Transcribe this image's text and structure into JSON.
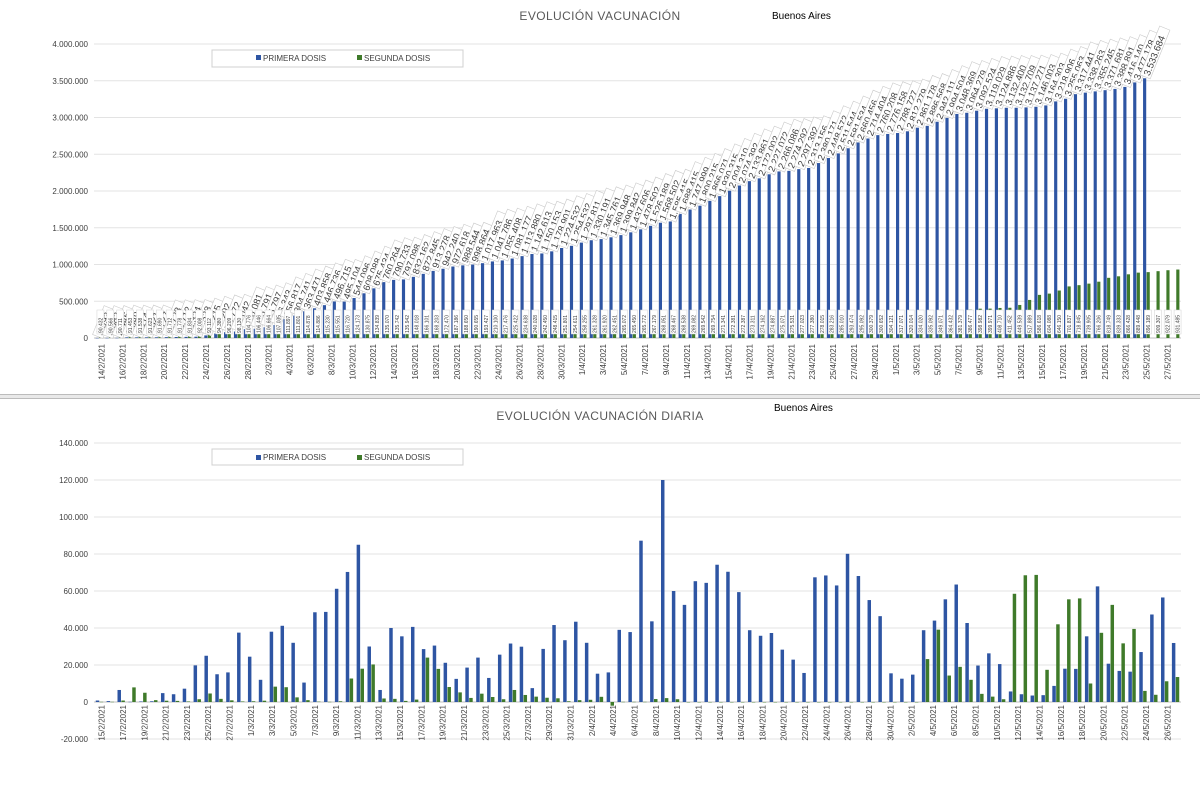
{
  "chart_data": [
    {
      "type": "bar",
      "title": "EVOLUCIÓN VACUNACIÓN",
      "subtitle": "Buenos Aires",
      "ylim": [
        0,
        4000000
      ],
      "y_ticks": [
        "0",
        "500.000",
        "1.000.000",
        "1.500.000",
        "2.000.000",
        "2.500.000",
        "3.000.000",
        "3.500.000",
        "4.000.000"
      ],
      "x_tick_labels": [
        "14/2/2021",
        "16/2/2021",
        "18/2/2021",
        "20/2/2021",
        "22/2/2021",
        "24/2/2021",
        "26/2/2021",
        "28/2/2021",
        "2/3/2021",
        "4/3/2021",
        "6/3/2021",
        "8/3/2021",
        "10/3/2021",
        "12/3/2021",
        "14/3/2021",
        "16/3/2021",
        "18/3/2021",
        "20/3/2021",
        "22/3/2021",
        "24/3/2021",
        "26/3/2021",
        "28/3/2021",
        "30/3/2021",
        "1/4/2021",
        "3/4/2021",
        "5/4/2021",
        "7/4/2021",
        "9/4/2021",
        "11/4/2021",
        "13/4/2021",
        "15/4/2021",
        "17/4/2021",
        "19/4/2021",
        "21/4/2021",
        "23/4/2021",
        "25/4/2021",
        "27/4/2021",
        "29/4/2021",
        "1/5/2021",
        "3/5/2021",
        "5/5/2021",
        "7/5/2021",
        "9/5/2021",
        "11/5/2021",
        "13/5/2021",
        "15/5/2021",
        "17/5/2021",
        "19/5/2021",
        "21/5/2021",
        "23/5/2021",
        "25/5/2021",
        "27/5/2021"
      ],
      "legend": {
        "position": "top-left",
        "entries": [
          "PRIMERA DOSIS",
          "SEGUNDA DOSIS"
        ]
      },
      "gridlines": true,
      "series": [
        {
          "name": "PRIMERA DOSIS",
          "color": "#2e55a3",
          "values": [
            1093,
            1882,
            2445,
            9049,
            9114,
            9321,
            9727,
            11728,
            13712,
            15324,
            17528,
            35215,
            61292,
            78772,
            88042,
            120081,
            125791,
            145797,
            176343,
            256817,
            304741,
            363471,
            403858,
            446736,
            496715,
            495104,
            544096,
            608088,
            675434,
            760264,
            790733,
            797098,
            832162,
            872845,
            913278,
            942240,
            972618,
            988544,
            998864,
            1017963,
            1041786,
            1055408,
            1081177,
            1113880,
            1142613,
            1150153,
            1178901,
            1224532,
            1254532,
            1297811,
            1330191,
            1345761,
            1369948,
            1399842,
            1437606,
            1478502,
            1526189,
            1568502,
            1585415,
            1688415,
            1747999,
            1800215,
            1866071,
            1930315,
            2004310,
            2074392,
            2133861,
            2172002,
            2227072,
            2266086,
            2274292,
            2297392,
            2313156,
            2380171,
            2448572,
            2511544,
            2581534,
            2660456,
            2714404,
            2760208,
            2776158,
            2788727,
            2812279,
            2861178,
            2886568,
            2942111,
            2994504,
            3048369,
            3064279,
            3092524,
            3119029,
            3124886,
            3132400,
            3132709,
            3137271,
            3146003,
            3164303,
            3218906,
            3255063,
            3317441,
            3338263,
            3355245,
            3371681,
            3388891,
            3416140,
            3477178,
            3533684
          ]
        },
        {
          "name": "SEGUNDA DOSIS",
          "color": "#3f7a2a",
          "values": [
            90432,
            90566,
            90711,
            91453,
            91538,
            91623,
            91690,
            91712,
            91778,
            91834,
            92008,
            93112,
            94380,
            96209,
            98130,
            104776,
            106446,
            106664,
            107035,
            111897,
            111801,
            114878,
            114886,
            115230,
            115551,
            116720,
            124173,
            130875,
            134839,
            135070,
            135742,
            135942,
            148018,
            166101,
            168203,
            172470,
            187186,
            188650,
            190655,
            193427,
            210100,
            217476,
            225422,
            234638,
            240028,
            242450,
            248415,
            251801,
            254611,
            258255,
            261328,
            261920,
            262451,
            265072,
            265450,
            265772,
            267179,
            268051,
            268467,
            268538,
            269082,
            269542,
            269754,
            271341,
            272381,
            272387,
            273311,
            274162,
            274887,
            275071,
            275531,
            277023,
            277380,
            278015,
            283216,
            285010,
            293474,
            295092,
            300379,
            300652,
            304121,
            317071,
            320014,
            334020,
            335092,
            349071,
            364432,
            381379,
            386477,
            398982,
            399971,
            408710,
            411452,
            449539,
            517889,
            586618,
            604088,
            646150,
            701837,
            718845,
            739905,
            766206,
            818749,
            839333,
            866428,
            889448,
            896189,
            909307,
            922079,
            931485
          ]
        }
      ],
      "data_labels": {
        "PRIMERA DOSIS": [
          "1.093",
          "1.882",
          "2.445",
          "9.049",
          "9.114",
          "9.321",
          "9.727",
          "11.728",
          "13.712",
          "15.324",
          "17.528",
          "35.215",
          "61.292",
          "78.772",
          "88.042",
          "120.081",
          "125.791",
          "145.797",
          "176.343",
          "256.817",
          "304.741",
          "363.471",
          "403.858",
          "446.736",
          "496.715",
          "495.104",
          "544.096",
          "608.088",
          "675.434",
          "760.264",
          "790.733",
          "797.098",
          "832.162",
          "872.845",
          "913.278",
          "942.240",
          "972.618",
          "988.544",
          "998.864",
          "1.017.963",
          "1.041.786",
          "1.055.408",
          "1.081.177",
          "1.113.880",
          "1.142.613",
          "1.150.153",
          "1.178.901",
          "1.224.532",
          "1.254.532",
          "1.297.811",
          "1.330.191",
          "1.345.761",
          "1.369.948",
          "1.399.842",
          "1.437.606",
          "1.478.502",
          "1.526.189",
          "1.568.502",
          "1.585.415",
          "1.688.415",
          "1.747.999",
          "1.800.215",
          "1.866.071",
          "1.930.315",
          "2.004.310",
          "2.074.392",
          "2.133.861",
          "2.172.002",
          "2.227.072",
          "2.266.086",
          "2.274.292",
          "2.297.392",
          "2.313.156",
          "2.380.171",
          "2.448.572",
          "2.511.544",
          "2.581.534",
          "2.660.456",
          "2.714.404",
          "2.760.208",
          "2.776.158",
          "2.788.727",
          "2.812.279",
          "2.861.178",
          "2.886.568",
          "2.942.111",
          "2.994.504",
          "3.048.369",
          "3.064.279",
          "3.092.524",
          "3.119.029",
          "3.124.886",
          "3.132.400",
          "3.132.709",
          "3.137.271",
          "3.146.003",
          "3.164.303",
          "3.218.906",
          "3.255.063",
          "3.317.441",
          "3.338.263",
          "3.355.245",
          "3.371.681",
          "3.388.891",
          "3.416.140",
          "3.477.178",
          "3.533.684"
        ],
        "SEGUNDA DOSIS": [
          "90.432",
          "90.566",
          "90.711",
          "91.453",
          "91.538",
          "91.623",
          "91.690",
          "91.712",
          "91.778",
          "91.834",
          "92.008",
          "93.112",
          "94.380",
          "96.209",
          "98.130",
          "104.776",
          "106.446",
          "106.664",
          "107.035",
          "111.897",
          "111.801",
          "114.878",
          "114.886",
          "115.230",
          "115.551",
          "116.720",
          "124.173",
          "130.875",
          "134.839",
          "135.070",
          "135.742",
          "135.942",
          "148.018",
          "166.101",
          "168.203",
          "172.470",
          "187.186",
          "188.650",
          "190.655",
          "193.427",
          "210.100",
          "217.476",
          "225.422",
          "234.638",
          "240.028",
          "242.450",
          "248.415",
          "251.801",
          "254.611",
          "258.255",
          "261.328",
          "261.920",
          "262.451",
          "265.072",
          "265.450",
          "265.772",
          "267.179",
          "268.051",
          "268.467",
          "268.538",
          "269.082",
          "269.542",
          "269.754",
          "271.341",
          "272.381",
          "272.387",
          "273.311",
          "274.162",
          "274.887",
          "275.071",
          "275.531",
          "277.023",
          "277.380",
          "278.015",
          "283.216",
          "285.010",
          "293.474",
          "295.092",
          "300.379",
          "300.652",
          "304.121",
          "317.071",
          "320.014",
          "334.020",
          "335.092",
          "349.071",
          "364.432",
          "381.379",
          "386.477",
          "398.982",
          "399.971",
          "408.710",
          "411.452",
          "449.539",
          "517.889",
          "586.618",
          "604.088",
          "646.150",
          "701.837",
          "718.845",
          "739.905",
          "766.206",
          "818.749",
          "839.333",
          "866.428",
          "889.448",
          "896.189",
          "909.307",
          "922.079",
          "931.485"
        ]
      }
    },
    {
      "type": "bar",
      "title": "EVOLUCIÓN VACUNACIÓN DIARIA",
      "subtitle": "Buenos Aires",
      "ylim": [
        -20000,
        140000
      ],
      "y_ticks": [
        "-20.000",
        "0",
        "20.000",
        "40.000",
        "60.000",
        "80.000",
        "100.000",
        "120.000",
        "140.000"
      ],
      "x_tick_labels": [
        "15/2/2021",
        "17/2/2021",
        "19/2/2021",
        "21/2/2021",
        "23/2/2021",
        "25/2/2021",
        "27/2/2021",
        "1/3/2021",
        "3/3/2021",
        "5/3/2021",
        "7/3/2021",
        "9/3/2021",
        "11/3/2021",
        "13/3/2021",
        "15/3/2021",
        "17/3/2021",
        "19/3/2021",
        "21/3/2021",
        "23/3/2021",
        "25/3/2021",
        "27/3/2021",
        "29/3/2021",
        "31/3/2021",
        "2/4/2021",
        "4/4/2021",
        "6/4/2021",
        "8/4/2021",
        "10/4/2021",
        "12/4/2021",
        "14/4/2021",
        "16/4/2021",
        "18/4/2021",
        "20/4/2021",
        "22/4/2021",
        "24/4/2021",
        "26/4/2021",
        "28/4/2021",
        "30/4/2021",
        "2/5/2021",
        "4/5/2021",
        "6/5/2021",
        "8/5/2021",
        "10/5/2021",
        "12/5/2021",
        "14/5/2021",
        "16/5/2021",
        "18/5/2021",
        "20/5/2021",
        "22/5/2021",
        "24/5/2021",
        "26/5/2021"
      ],
      "legend": {
        "position": "top-left",
        "entries": [
          "PRIMERA DOSIS",
          "SEGUNDA DOSIS"
        ]
      },
      "gridlines": true,
      "series": [
        {
          "name": "PRIMERA DOSIS",
          "color": "#2e55a3",
          "values": [
            800,
            500,
            6500,
            100,
            300,
            400,
            4800,
            4200,
            7200,
            19800,
            25000,
            15000,
            16000,
            37500,
            24500,
            12000,
            38000,
            41200,
            32000,
            10500,
            48500,
            48700,
            61200,
            70300,
            85000,
            30000,
            6500,
            40000,
            35500,
            40600,
            28600,
            30500,
            21200,
            12500,
            18600,
            24000,
            13000,
            25600,
            31600,
            29900,
            7500,
            28700,
            41600,
            33400,
            43400,
            32000,
            15300,
            16000,
            39000,
            37800,
            87200,
            43600,
            120000,
            60000,
            52500,
            65300,
            64400,
            74200,
            70400,
            59400,
            38800,
            35800,
            37300,
            28300,
            22900,
            15700,
            67400,
            68400,
            63000,
            80100,
            68100,
            55100,
            46400,
            15500,
            12600,
            14800,
            38800,
            44000,
            55500,
            63500,
            42700,
            19700,
            26300,
            20500,
            5700,
            4200,
            3500,
            3700,
            8700,
            18000,
            17900,
            35500,
            62500,
            20700,
            16800,
            16400,
            27000,
            47300,
            56500,
            31900
          ]
        },
        {
          "name": "SEGUNDA DOSIS",
          "color": "#3f7a2a",
          "values": [
            100,
            100,
            800,
            7900,
            5000,
            1000,
            700,
            600,
            300,
            1500,
            4600,
            1700,
            900,
            300,
            400,
            700,
            8300,
            8000,
            2500,
            1000,
            200,
            100,
            400,
            12700,
            18000,
            20300,
            1900,
            1700,
            600,
            1300,
            24000,
            17900,
            8100,
            5200,
            2200,
            4500,
            2700,
            1500,
            6500,
            3800,
            2900,
            2300,
            2000,
            400,
            1000,
            1200,
            2800,
            -2000,
            100,
            100,
            100,
            1600,
            2100,
            1500,
            0,
            0,
            0,
            0,
            0,
            0,
            0,
            0,
            0,
            0,
            0,
            0,
            0,
            0,
            0,
            0,
            0,
            0,
            0,
            0,
            0,
            0,
            23200,
            39100,
            14300,
            19000,
            12000,
            4400,
            2900,
            1500,
            58500,
            68500,
            68700,
            17400,
            42000,
            55500,
            56000,
            10000,
            37400,
            52500,
            31700,
            39500,
            6000,
            3900,
            11200,
            13500
          ]
        }
      ]
    }
  ]
}
